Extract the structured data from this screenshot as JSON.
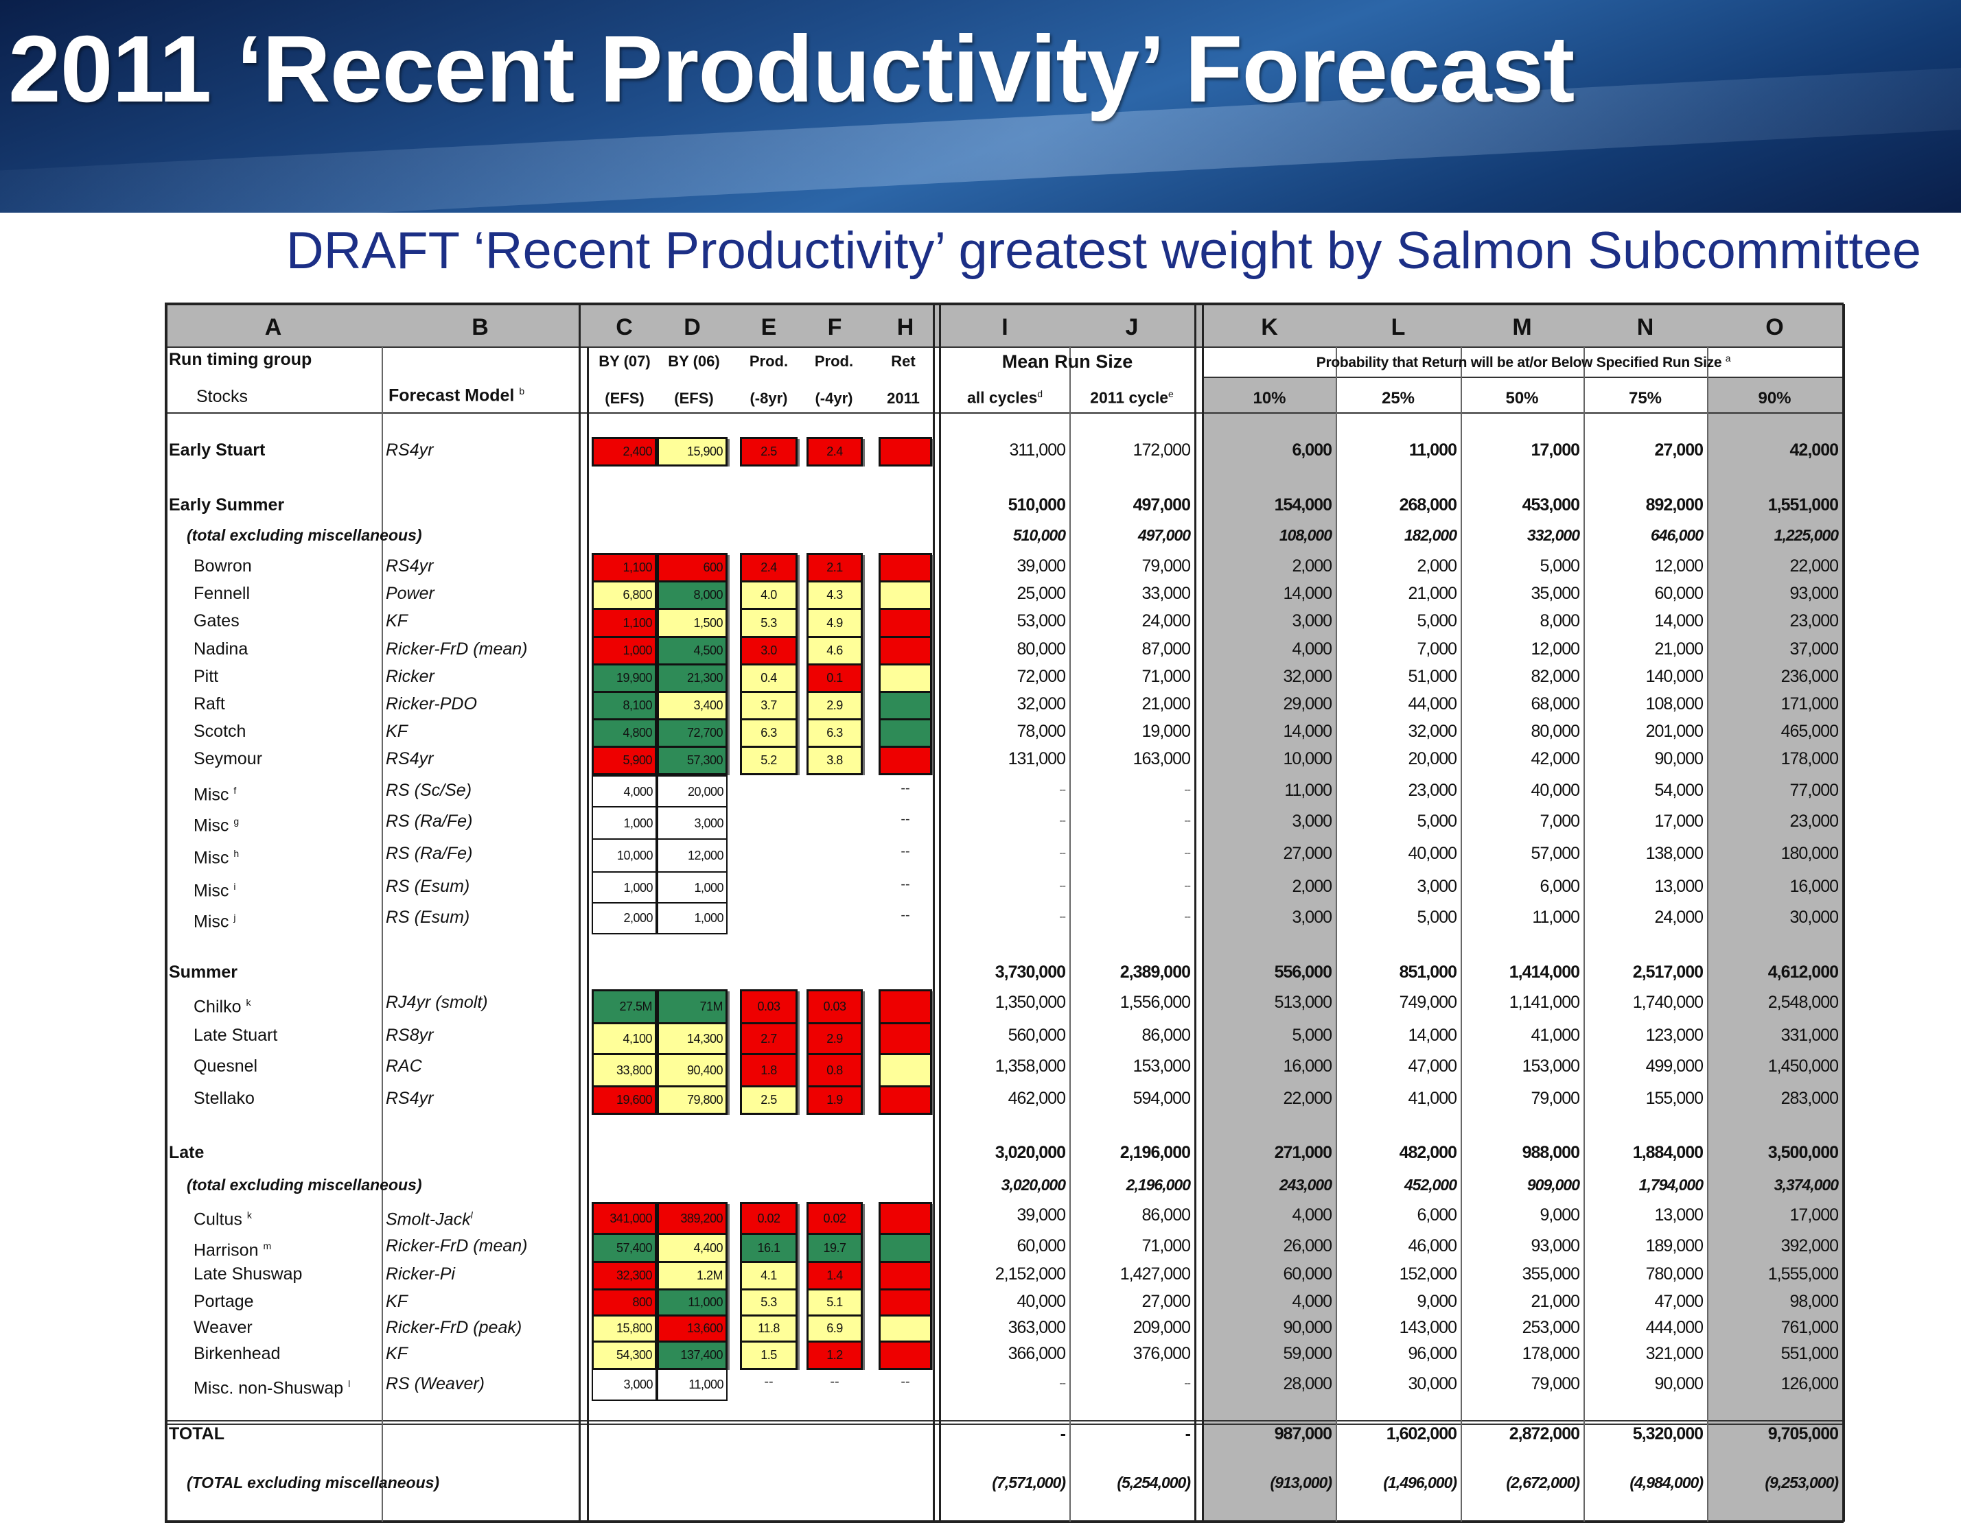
{
  "title": "2011 ‘Recent Productivity’ Forecast",
  "subtitle": "DRAFT ‘Recent Productivity’ greatest weight by Salmon Subcommittee",
  "colors": {
    "R": "#ee0000",
    "Y": "#ffff99",
    "G": "#2e8b57",
    "W": "#ffffff",
    "gray": "#b5b5b5",
    "subtitle": "#1c2f86"
  },
  "columns": [
    "A",
    "B",
    "C",
    "D",
    "E",
    "F",
    "H",
    "I",
    "J",
    "K",
    "L",
    "M",
    "N",
    "O"
  ],
  "header": {
    "run_timing_group": "Run timing group",
    "stocks": "Stocks",
    "forecast_model": "Forecast Model",
    "forecast_model_sup": "b",
    "c1": "BY (07)",
    "c2": "(EFS)",
    "d1": "BY (06)",
    "d2": "(EFS)",
    "e1": "Prod.",
    "e2": "(-8yr)",
    "f1": "Prod.",
    "f2": "(-4yr)",
    "h1": "Ret",
    "h2": "2011",
    "mean_run_size": "Mean Run Size",
    "all_cycles": "all cycles",
    "all_cycles_sup": "d",
    "cycle_2011": "2011 cycle",
    "cycle_2011_sup": "e",
    "probability": "Probability that Return will be at/or Below Specified Run Size",
    "probability_sup": "a",
    "pcts": [
      "10%",
      "25%",
      "50%",
      "75%",
      "90%"
    ]
  },
  "rows": [
    {
      "kind": "es",
      "label": "Early Stuart",
      "model": "RS4yr",
      "c": "2,400",
      "d": "15,900",
      "e": "2.5",
      "f": "2.4",
      "fill": "RYRRR",
      "i": "311,000",
      "j": "172,000",
      "k": "6,000",
      "l": "11,000",
      "m": "17,000",
      "n": "27,000",
      "o": "42,000"
    },
    {
      "kind": "group",
      "label": "Early Summer",
      "i": "510,000",
      "j": "497,000",
      "k": "154,000",
      "l": "268,000",
      "m": "453,000",
      "n": "892,000",
      "o": "1,551,000"
    },
    {
      "kind": "subtotal",
      "label": "(total excluding miscellaneous)",
      "i": "510,000",
      "j": "497,000",
      "k": "108,000",
      "l": "182,000",
      "m": "332,000",
      "n": "646,000",
      "o": "1,225,000"
    },
    {
      "kind": "stock",
      "label": "Bowron",
      "model": "RS4yr",
      "c": "1,100",
      "d": "600",
      "e": "2.4",
      "f": "2.1",
      "fill": "RRRRR",
      "i": "39,000",
      "j": "79,000",
      "k": "2,000",
      "l": "2,000",
      "m": "5,000",
      "n": "12,000",
      "o": "22,000"
    },
    {
      "kind": "stock",
      "label": "Fennell",
      "model": "Power",
      "c": "6,800",
      "d": "8,000",
      "e": "4.0",
      "f": "4.3",
      "fill": "YGYYY",
      "i": "25,000",
      "j": "33,000",
      "k": "14,000",
      "l": "21,000",
      "m": "35,000",
      "n": "60,000",
      "o": "93,000"
    },
    {
      "kind": "stock",
      "label": "Gates",
      "model": "KF",
      "c": "1,100",
      "d": "1,500",
      "e": "5.3",
      "f": "4.9",
      "fill": "RYYYR",
      "i": "53,000",
      "j": "24,000",
      "k": "3,000",
      "l": "5,000",
      "m": "8,000",
      "n": "14,000",
      "o": "23,000"
    },
    {
      "kind": "stock",
      "label": "Nadina",
      "model": "Ricker-FrD (mean)",
      "c": "1,000",
      "d": "4,500",
      "e": "3.0",
      "f": "4.6",
      "fill": "RGRYR",
      "i": "80,000",
      "j": "87,000",
      "k": "4,000",
      "l": "7,000",
      "m": "12,000",
      "n": "21,000",
      "o": "37,000"
    },
    {
      "kind": "stock",
      "label": "Pitt",
      "model": "Ricker",
      "c": "19,900",
      "d": "21,300",
      "e": "0.4",
      "f": "0.1",
      "fill": "GGYRY",
      "i": "72,000",
      "j": "71,000",
      "k": "32,000",
      "l": "51,000",
      "m": "82,000",
      "n": "140,000",
      "o": "236,000"
    },
    {
      "kind": "stock",
      "label": "Raft",
      "model": "Ricker-PDO",
      "c": "8,100",
      "d": "3,400",
      "e": "3.7",
      "f": "2.9",
      "fill": "GYYYG",
      "i": "32,000",
      "j": "21,000",
      "k": "29,000",
      "l": "44,000",
      "m": "68,000",
      "n": "108,000",
      "o": "171,000"
    },
    {
      "kind": "stock",
      "label": "Scotch",
      "model": "KF",
      "c": "4,800",
      "d": "72,700",
      "e": "6.3",
      "f": "6.3",
      "fill": "GGYYG",
      "i": "78,000",
      "j": "19,000",
      "k": "14,000",
      "l": "32,000",
      "m": "80,000",
      "n": "201,000",
      "o": "465,000"
    },
    {
      "kind": "stock",
      "label": "Seymour",
      "model": "RS4yr",
      "c": "5,900",
      "d": "57,300",
      "e": "5.2",
      "f": "3.8",
      "fill": "RGYYR",
      "i": "131,000",
      "j": "163,000",
      "k": "10,000",
      "l": "20,000",
      "m": "42,000",
      "n": "90,000",
      "o": "178,000"
    },
    {
      "kind": "misc",
      "label": "Misc",
      "sup": "f",
      "model": "RS (Sc/Se)",
      "c": "4,000",
      "d": "20,000",
      "h": "--",
      "i": "--",
      "j": "--",
      "k": "11,000",
      "l": "23,000",
      "m": "40,000",
      "n": "54,000",
      "o": "77,000"
    },
    {
      "kind": "misc",
      "label": "Misc",
      "sup": "g",
      "model": "RS (Ra/Fe)",
      "c": "1,000",
      "d": "3,000",
      "h": "--",
      "i": "--",
      "j": "--",
      "k": "3,000",
      "l": "5,000",
      "m": "7,000",
      "n": "17,000",
      "o": "23,000"
    },
    {
      "kind": "misc",
      "label": "Misc",
      "sup": "h",
      "model": "RS (Ra/Fe)",
      "c": "10,000",
      "d": "12,000",
      "h": "--",
      "i": "--",
      "j": "--",
      "k": "27,000",
      "l": "40,000",
      "m": "57,000",
      "n": "138,000",
      "o": "180,000"
    },
    {
      "kind": "misc",
      "label": "Misc",
      "sup": "i",
      "model": "RS (Esum)",
      "c": "1,000",
      "d": "1,000",
      "h": "--",
      "i": "--",
      "j": "--",
      "k": "2,000",
      "l": "3,000",
      "m": "6,000",
      "n": "13,000",
      "o": "16,000"
    },
    {
      "kind": "misc",
      "label": "Misc",
      "sup": "j",
      "model": "RS (Esum)",
      "c": "2,000",
      "d": "1,000",
      "h": "--",
      "i": "--",
      "j": "--",
      "k": "3,000",
      "l": "5,000",
      "m": "11,000",
      "n": "24,000",
      "o": "30,000"
    },
    {
      "kind": "group",
      "label": "Summer",
      "i": "3,730,000",
      "j": "2,389,000",
      "k": "556,000",
      "l": "851,000",
      "m": "1,414,000",
      "n": "2,517,000",
      "o": "4,612,000"
    },
    {
      "kind": "stock",
      "label": "Chilko",
      "sup": "k",
      "model": "RJ4yr (smolt)",
      "c": "27.5M",
      "d": "71M",
      "e": "0.03",
      "f": "0.03",
      "fill": "GGRRR",
      "i": "1,350,000",
      "j": "1,556,000",
      "k": "513,000",
      "l": "749,000",
      "m": "1,141,000",
      "n": "1,740,000",
      "o": "2,548,000"
    },
    {
      "kind": "stock",
      "label": "Late Stuart",
      "model": "RS8yr",
      "c": "4,100",
      "d": "14,300",
      "e": "2.7",
      "f": "2.9",
      "fill": "YYRRR",
      "i": "560,000",
      "j": "86,000",
      "k": "5,000",
      "l": "14,000",
      "m": "41,000",
      "n": "123,000",
      "o": "331,000"
    },
    {
      "kind": "stock",
      "label": "Quesnel",
      "model": "RAC",
      "c": "33,800",
      "d": "90,400",
      "e": "1.8",
      "f": "0.8",
      "fill": "YYRRY",
      "i": "1,358,000",
      "j": "153,000",
      "k": "16,000",
      "l": "47,000",
      "m": "153,000",
      "n": "499,000",
      "o": "1,450,000"
    },
    {
      "kind": "stock",
      "label": "Stellako",
      "model": "RS4yr",
      "c": "19,600",
      "d": "79,800",
      "e": "2.5",
      "f": "1.9",
      "fill": "RYYRR",
      "i": "462,000",
      "j": "594,000",
      "k": "22,000",
      "l": "41,000",
      "m": "79,000",
      "n": "155,000",
      "o": "283,000"
    },
    {
      "kind": "group",
      "label": "Late",
      "i": "3,020,000",
      "j": "2,196,000",
      "k": "271,000",
      "l": "482,000",
      "m": "988,000",
      "n": "1,884,000",
      "o": "3,500,000"
    },
    {
      "kind": "subtotal",
      "label": "(total excluding miscellaneous)",
      "i": "3,020,000",
      "j": "2,196,000",
      "k": "243,000",
      "l": "452,000",
      "m": "909,000",
      "n": "1,794,000",
      "o": "3,374,000"
    },
    {
      "kind": "stock",
      "label": "Cultus",
      "sup": "k",
      "model": "Smolt-Jack",
      "msup": "l",
      "c": "341,000",
      "d": "389,200",
      "e": "0.02",
      "f": "0.02",
      "fill": "RRRRR",
      "i": "39,000",
      "j": "86,000",
      "k": "4,000",
      "l": "6,000",
      "m": "9,000",
      "n": "13,000",
      "o": "17,000"
    },
    {
      "kind": "stock",
      "label": "Harrison",
      "sup": "m",
      "model": "Ricker-FrD (mean)",
      "c": "57,400",
      "d": "4,400",
      "e": "16.1",
      "f": "19.7",
      "fill": "GYGGG",
      "i": "60,000",
      "j": "71,000",
      "k": "26,000",
      "l": "46,000",
      "m": "93,000",
      "n": "189,000",
      "o": "392,000"
    },
    {
      "kind": "stock",
      "label": "Late Shuswap",
      "model": "Ricker-Pi",
      "c": "32,300",
      "d": "1.2M",
      "e": "4.1",
      "f": "1.4",
      "fill": "RYYRR",
      "i": "2,152,000",
      "j": "1,427,000",
      "k": "60,000",
      "l": "152,000",
      "m": "355,000",
      "n": "780,000",
      "o": "1,555,000"
    },
    {
      "kind": "stock",
      "label": "Portage",
      "model": "KF",
      "c": "800",
      "d": "11,000",
      "e": "5.3",
      "f": "5.1",
      "fill": "RGYYR",
      "i": "40,000",
      "j": "27,000",
      "k": "4,000",
      "l": "9,000",
      "m": "21,000",
      "n": "47,000",
      "o": "98,000"
    },
    {
      "kind": "stock",
      "label": "Weaver",
      "model": "Ricker-FrD (peak)",
      "c": "15,800",
      "d": "13,600",
      "e": "11.8",
      "f": "6.9",
      "fill": "YRYYY",
      "i": "363,000",
      "j": "209,000",
      "k": "90,000",
      "l": "143,000",
      "m": "253,000",
      "n": "444,000",
      "o": "761,000"
    },
    {
      "kind": "stock",
      "label": "Birkenhead",
      "model": "KF",
      "c": "54,300",
      "d": "137,400",
      "e": "1.5",
      "f": "1.2",
      "fill": "YGYRR",
      "i": "366,000",
      "j": "376,000",
      "k": "59,000",
      "l": "96,000",
      "m": "178,000",
      "n": "321,000",
      "o": "551,000"
    },
    {
      "kind": "misc",
      "label": "Misc. non-Shuswap",
      "sup": "l",
      "model": "RS (Weaver)",
      "c": "3,000",
      "d": "11,000",
      "e": "--",
      "f": "--",
      "h": "--",
      "i": "--",
      "j": "--",
      "k": "28,000",
      "l": "30,000",
      "m": "79,000",
      "n": "90,000",
      "o": "126,000"
    },
    {
      "kind": "total",
      "label": "TOTAL",
      "i": "-",
      "j": "-",
      "k": "987,000",
      "l": "1,602,000",
      "m": "2,872,000",
      "n": "5,320,000",
      "o": "9,705,000"
    },
    {
      "kind": "totalsub",
      "label": "(TOTAL excluding miscellaneous)",
      "i": "(7,571,000)",
      "j": "(5,254,000)",
      "k": "(913,000)",
      "l": "(1,496,000)",
      "m": "(2,672,000)",
      "n": "(4,984,000)",
      "o": "(9,253,000)"
    }
  ]
}
